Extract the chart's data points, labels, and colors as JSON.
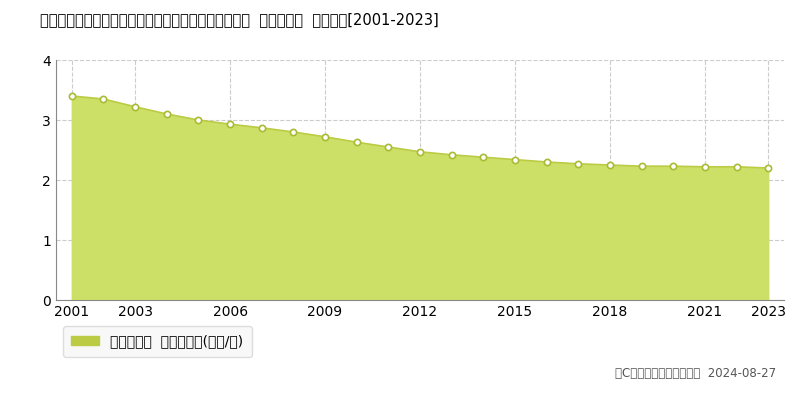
{
  "title": "福島県東白川郡鮫川村大字赤坂中野字道少田１８番１  基準地価格  地価推移[2001-2023]",
  "years": [
    2001,
    2002,
    2003,
    2004,
    2005,
    2006,
    2007,
    2008,
    2009,
    2010,
    2011,
    2012,
    2013,
    2014,
    2015,
    2016,
    2017,
    2018,
    2019,
    2020,
    2021,
    2022,
    2023
  ],
  "values": [
    3.4,
    3.35,
    3.22,
    3.1,
    3.0,
    2.93,
    2.87,
    2.8,
    2.72,
    2.63,
    2.55,
    2.47,
    2.42,
    2.38,
    2.34,
    2.3,
    2.27,
    2.25,
    2.23,
    2.23,
    2.22,
    2.22,
    2.2
  ],
  "fill_color": "#cce068",
  "line_color": "#bbcc44",
  "marker_face_color": "#ffffff",
  "marker_edge_color": "#aabb33",
  "background_color": "#ffffff",
  "grid_color": "#cccccc",
  "ylim": [
    0,
    4
  ],
  "yticks": [
    0,
    1,
    2,
    3,
    4
  ],
  "xticks": [
    2001,
    2003,
    2006,
    2009,
    2012,
    2015,
    2018,
    2021,
    2023
  ],
  "legend_label": "基準地価格  平均坪単価(万円/坪)",
  "legend_color": "#bbcc44",
  "copyright_text": "（C）土地価格ドットコム  2024-08-27",
  "title_fontsize": 10.5,
  "legend_fontsize": 10,
  "tick_fontsize": 10,
  "copyright_fontsize": 8.5
}
